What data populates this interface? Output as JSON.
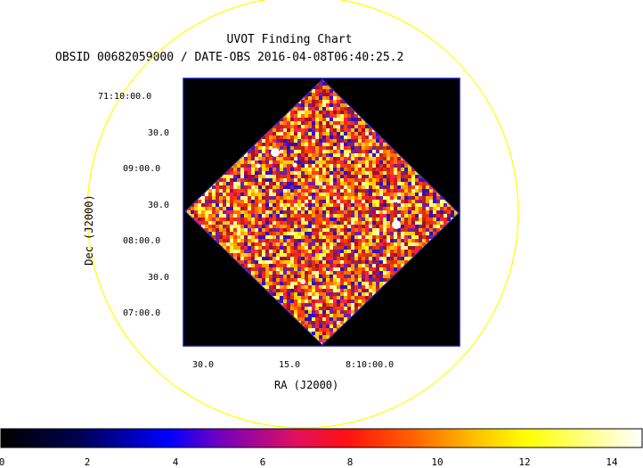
{
  "chart": {
    "title": "UVOT Finding Chart",
    "subtitle": "OBSID 00682059000 / DATE-OBS 2016-04-08T06:40:25.2",
    "ra_label": "RA (J2000)",
    "dec_label": "Dec (J2000)",
    "ra_ticks": [
      "30.0",
      "15.0",
      "8:10:00.0"
    ],
    "dec_ticks": [
      "71:10:00.0",
      "30.0",
      "09:00.0",
      "30.0",
      "08:00.0",
      "30.0",
      "07:00.0"
    ],
    "colorbar_ticks": [
      "0",
      "2",
      "4",
      "6",
      "8",
      "10",
      "12",
      "14"
    ],
    "colors": {
      "circle": "#ffff00",
      "frame": "#0000aa",
      "background": "#000000"
    }
  }
}
